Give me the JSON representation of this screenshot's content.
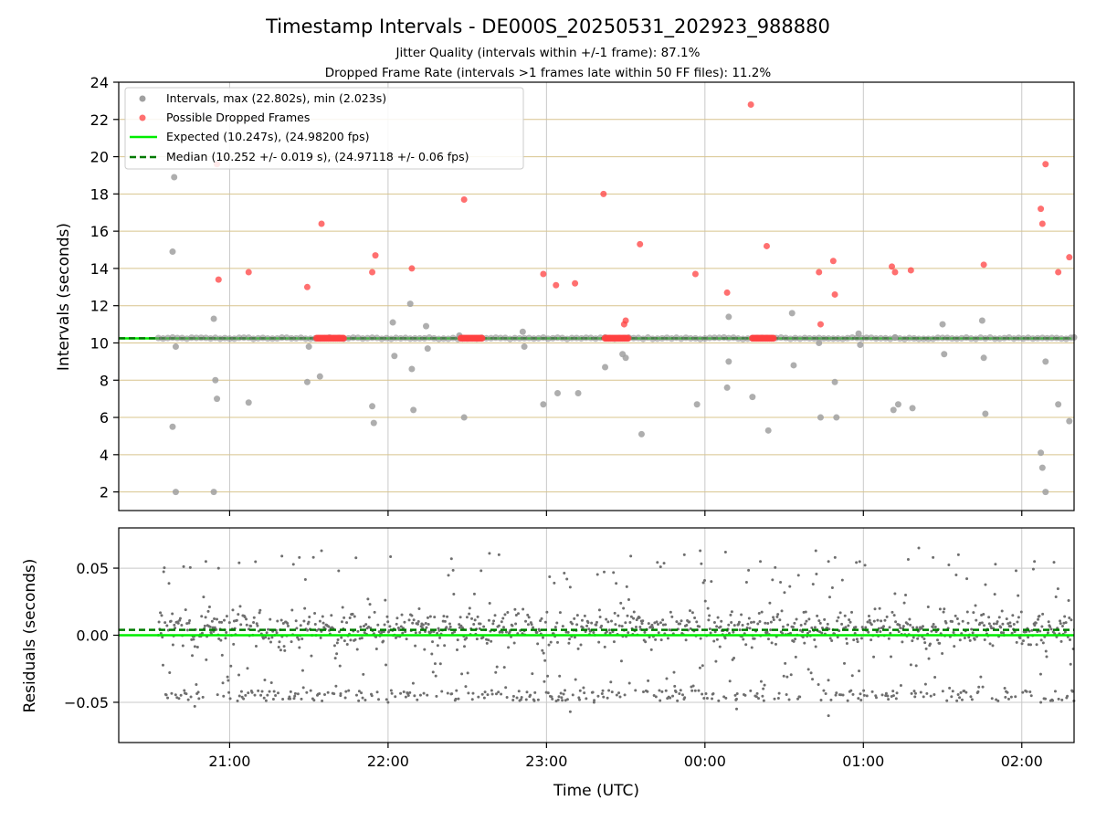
{
  "chart_data": [
    {
      "type": "scatter",
      "title": "Timestamp Intervals - DE000S_20250531_202923_988880",
      "subtitle_lines": [
        "Jitter Quality (intervals within +/-1 frame): 87.1%",
        "Dropped Frame Rate (intervals >1 frames late within 50 FF files): 11.2%"
      ],
      "ylabel": "Intervals (seconds)",
      "xlabel": "",
      "xlim": [
        20.3,
        26.33
      ],
      "ylim": [
        1,
        24
      ],
      "yticks": [
        2,
        4,
        6,
        8,
        10,
        12,
        14,
        16,
        18,
        20,
        22,
        24
      ],
      "ytick_labels": [
        "2",
        "4",
        "6",
        "8",
        "10",
        "12",
        "14",
        "16",
        "18",
        "20",
        "22",
        "24"
      ],
      "grid": true,
      "legend": "top-left",
      "colors": {
        "intervals": "#a0a0a0",
        "dropped": "#ff4040",
        "expected": "#00ee00",
        "median": "#007a00",
        "hgrid": "#d8c48e",
        "vgrid": "#c8c8c8"
      },
      "legend_entries": [
        "Intervals, max (22.802s), min (2.023s)",
        "Possible Dropped Frames",
        "Expected (10.247s), (24.98200 fps)",
        "Median (10.252 +/- 0.019 s), (24.97118 +/- 0.06 fps)"
      ],
      "expected_interval": 10.247,
      "median_interval": 10.252,
      "baseline_range": [
        20.55,
        26.33
      ],
      "series": [
        {
          "name": "Intervals, max (22.802s), min (2.023s)",
          "points": [
            [
              20.65,
              18.9
            ],
            [
              20.64,
              14.9
            ],
            [
              20.64,
              5.5
            ],
            [
              20.66,
              9.8
            ],
            [
              20.66,
              2.0
            ],
            [
              20.9,
              11.3
            ],
            [
              20.91,
              8.0
            ],
            [
              20.92,
              7.0
            ],
            [
              20.9,
              2.0
            ],
            [
              21.12,
              6.8
            ],
            [
              21.5,
              9.8
            ],
            [
              21.49,
              7.9
            ],
            [
              21.57,
              8.2
            ],
            [
              21.9,
              6.6
            ],
            [
              21.91,
              5.7
            ],
            [
              22.03,
              11.1
            ],
            [
              22.04,
              9.3
            ],
            [
              22.14,
              12.1
            ],
            [
              22.15,
              8.6
            ],
            [
              22.16,
              6.4
            ],
            [
              22.24,
              10.9
            ],
            [
              22.25,
              9.7
            ],
            [
              22.45,
              10.4
            ],
            [
              22.48,
              6.0
            ],
            [
              22.85,
              10.6
            ],
            [
              22.86,
              9.8
            ],
            [
              22.98,
              6.7
            ],
            [
              23.07,
              7.3
            ],
            [
              23.2,
              7.3
            ],
            [
              23.37,
              8.7
            ],
            [
              23.48,
              9.4
            ],
            [
              23.5,
              9.2
            ],
            [
              23.6,
              5.1
            ],
            [
              23.95,
              6.7
            ],
            [
              24.15,
              11.4
            ],
            [
              24.15,
              9.0
            ],
            [
              24.14,
              7.6
            ],
            [
              24.3,
              7.1
            ],
            [
              24.4,
              5.3
            ],
            [
              24.55,
              11.6
            ],
            [
              24.56,
              8.8
            ],
            [
              24.72,
              10.0
            ],
            [
              24.73,
              6.0
            ],
            [
              24.82,
              7.9
            ],
            [
              24.83,
              6.0
            ],
            [
              24.97,
              10.5
            ],
            [
              24.98,
              9.9
            ],
            [
              25.2,
              10.3
            ],
            [
              25.19,
              6.4
            ],
            [
              25.22,
              6.7
            ],
            [
              25.31,
              6.5
            ],
            [
              25.5,
              11.0
            ],
            [
              25.51,
              9.4
            ],
            [
              25.75,
              11.2
            ],
            [
              25.76,
              9.2
            ],
            [
              25.77,
              6.2
            ],
            [
              26.12,
              4.1
            ],
            [
              26.13,
              3.3
            ],
            [
              26.15,
              9.0
            ],
            [
              26.15,
              2.0
            ],
            [
              26.23,
              6.7
            ],
            [
              26.3,
              5.8
            ],
            [
              26.33,
              10.3
            ]
          ]
        },
        {
          "name": "Possible Dropped Frames",
          "points": [
            [
              20.92,
              19.6
            ],
            [
              20.93,
              13.4
            ],
            [
              21.12,
              13.8
            ],
            [
              21.49,
              13.0
            ],
            [
              21.58,
              16.4
            ],
            [
              21.9,
              13.8
            ],
            [
              21.92,
              14.7
            ],
            [
              22.15,
              14.0
            ],
            [
              22.48,
              17.7
            ],
            [
              22.98,
              13.7
            ],
            [
              23.06,
              13.1
            ],
            [
              23.18,
              13.2
            ],
            [
              23.36,
              18.0
            ],
            [
              23.49,
              11.0
            ],
            [
              23.5,
              11.2
            ],
            [
              23.59,
              15.3
            ],
            [
              23.94,
              13.7
            ],
            [
              24.14,
              12.7
            ],
            [
              24.29,
              22.8
            ],
            [
              24.39,
              15.2
            ],
            [
              24.72,
              13.8
            ],
            [
              24.73,
              11.0
            ],
            [
              24.81,
              14.4
            ],
            [
              24.82,
              12.6
            ],
            [
              25.18,
              14.1
            ],
            [
              25.2,
              13.8
            ],
            [
              25.3,
              13.9
            ],
            [
              25.76,
              14.2
            ],
            [
              26.12,
              17.2
            ],
            [
              26.13,
              16.4
            ],
            [
              26.15,
              19.6
            ],
            [
              26.23,
              13.8
            ],
            [
              26.3,
              14.6
            ]
          ],
          "clusters": [
            [
              21.55,
              21.72
            ],
            [
              22.46,
              22.6
            ],
            [
              23.37,
              23.52
            ],
            [
              24.3,
              24.44
            ]
          ]
        }
      ]
    },
    {
      "type": "scatter",
      "title": "",
      "xlabel": "Time (UTC)",
      "ylabel": "Residuals (seconds)",
      "xlim": [
        20.3,
        26.33
      ],
      "ylim": [
        -0.08,
        0.08
      ],
      "yticks": [
        -0.05,
        0.0,
        0.05
      ],
      "ytick_labels": [
        "−0.05",
        "0.00",
        "0.05"
      ],
      "xticks": [
        21,
        22,
        23,
        24,
        25,
        26
      ],
      "xtick_labels": [
        "21:00",
        "22:00",
        "23:00",
        "00:00",
        "01:00",
        "02:00"
      ],
      "grid": true,
      "colors": {
        "points": "#6e6e6e",
        "expected": "#00ee00",
        "median": "#007a00",
        "grid": "#c8c8c8"
      },
      "expected_residual": 0.0,
      "median_residual": 0.004,
      "x_range": [
        20.55,
        26.33
      ],
      "note_series": "dense residual cloud concentrated near 0.005, with a band near -0.045 and sparse points up to 0.065",
      "series": [
        {
          "name": "",
          "sample_points": [
            [
              20.85,
              0.055
            ],
            [
              20.93,
              0.05
            ],
            [
              21.06,
              0.054
            ],
            [
              21.33,
              0.059
            ],
            [
              21.44,
              0.058
            ],
            [
              21.58,
              0.063
            ],
            [
              22.4,
              0.057
            ],
            [
              22.64,
              0.061
            ],
            [
              22.7,
              0.06
            ],
            [
              23.72,
              0.051
            ],
            [
              23.87,
              0.06
            ],
            [
              23.97,
              0.063
            ],
            [
              24.13,
              0.062
            ],
            [
              24.35,
              0.055
            ],
            [
              24.7,
              0.063
            ],
            [
              24.78,
              0.055
            ],
            [
              25.35,
              0.065
            ],
            [
              25.44,
              0.058
            ],
            [
              25.6,
              0.06
            ],
            [
              26.08,
              0.055
            ],
            [
              20.78,
              -0.053
            ],
            [
              21.7,
              -0.045
            ],
            [
              22.0,
              -0.05
            ],
            [
              23.15,
              -0.057
            ],
            [
              23.3,
              -0.05
            ],
            [
              24.2,
              -0.055
            ],
            [
              24.78,
              -0.06
            ],
            [
              26.12,
              -0.05
            ]
          ]
        }
      ]
    }
  ]
}
